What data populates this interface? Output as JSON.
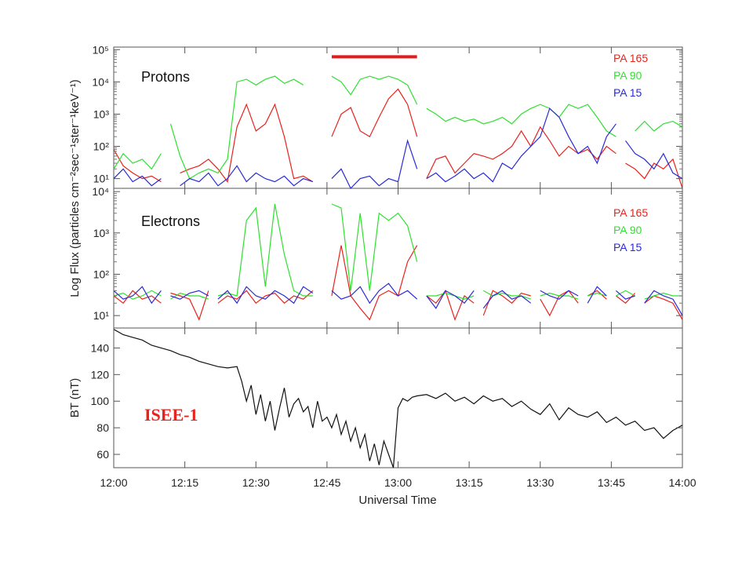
{
  "figure": {
    "ylabel": "Log Flux (particles cm⁻²sec⁻¹ster⁻¹keV⁻¹)",
    "mission_label": "ISEE-1",
    "highlight_bar_color": "#e41a1c"
  },
  "chart_data": [
    {
      "type": "line",
      "panel": "protons",
      "title": "Protons",
      "xlabel": "",
      "ylabel": "Log Flux (particles cm⁻²sec⁻¹ster⁻¹keV⁻¹)",
      "yscale": "log",
      "xlim": [
        0,
        120
      ],
      "ylim": [
        5,
        120000
      ],
      "yticks": [
        10,
        100,
        1000,
        10000,
        100000
      ],
      "ytick_labels": [
        "10¹",
        "10²",
        "10³",
        "10⁴",
        "10⁵"
      ],
      "legend_position": "top-right",
      "highlight_bar": {
        "x_start": 46,
        "x_end": 64,
        "y": 60000
      },
      "series": [
        {
          "name": "PA 165",
          "color": "#e8221c",
          "x": [
            0,
            2,
            4,
            6,
            8,
            10,
            14,
            16,
            18,
            20,
            22,
            24,
            26,
            28,
            30,
            32,
            34,
            36,
            38,
            40,
            42,
            46,
            48,
            50,
            52,
            54,
            56,
            58,
            60,
            62,
            64,
            66,
            68,
            70,
            72,
            74,
            76,
            78,
            80,
            82,
            84,
            86,
            88,
            90,
            92,
            94,
            96,
            98,
            100,
            102,
            104,
            106,
            108,
            110,
            112,
            114,
            116,
            118,
            120
          ],
          "y": [
            80,
            25,
            15,
            10,
            12,
            8,
            15,
            20,
            25,
            40,
            20,
            8,
            400,
            2000,
            300,
            500,
            2000,
            200,
            10,
            12,
            8,
            200,
            1000,
            1600,
            300,
            200,
            800,
            3000,
            6000,
            2000,
            200,
            10,
            40,
            50,
            15,
            30,
            60,
            50,
            40,
            60,
            100,
            300,
            100,
            400,
            150,
            50,
            100,
            60,
            80,
            40,
            100,
            60,
            30,
            20,
            10,
            30,
            20,
            40,
            5
          ],
          "gaps_after_x": [
            10,
            42,
            64,
            106
          ]
        },
        {
          "name": "PA 90",
          "color": "#2fe02f",
          "x": [
            0,
            2,
            4,
            6,
            8,
            10,
            12,
            14,
            16,
            18,
            20,
            22,
            24,
            26,
            28,
            30,
            32,
            34,
            36,
            38,
            40,
            46,
            48,
            50,
            52,
            54,
            56,
            58,
            60,
            62,
            64,
            66,
            68,
            70,
            72,
            74,
            76,
            78,
            80,
            82,
            84,
            86,
            88,
            90,
            92,
            94,
            96,
            98,
            100,
            102,
            104,
            106,
            110,
            112,
            114,
            116,
            118,
            120
          ],
          "y": [
            20,
            60,
            30,
            40,
            20,
            60,
            500,
            50,
            10,
            15,
            20,
            15,
            40,
            10000,
            12000,
            8000,
            12000,
            15000,
            9000,
            12000,
            8000,
            15000,
            10000,
            4000,
            12000,
            15000,
            12000,
            15000,
            12000,
            8000,
            2000,
            1500,
            1000,
            600,
            800,
            600,
            700,
            500,
            600,
            800,
            500,
            1000,
            1500,
            2000,
            1500,
            800,
            2000,
            1500,
            2000,
            800,
            300,
            200,
            300,
            600,
            300,
            500,
            600,
            400
          ],
          "gaps_after_x": [
            10,
            40,
            64,
            106
          ]
        },
        {
          "name": "PA 15",
          "color": "#2a2ad6",
          "x": [
            0,
            2,
            4,
            6,
            8,
            10,
            14,
            16,
            18,
            20,
            22,
            24,
            26,
            28,
            30,
            32,
            34,
            36,
            38,
            40,
            42,
            46,
            48,
            50,
            52,
            54,
            56,
            58,
            60,
            62,
            64,
            66,
            68,
            70,
            72,
            74,
            76,
            78,
            80,
            82,
            84,
            86,
            88,
            90,
            92,
            94,
            96,
            98,
            100,
            102,
            104,
            106,
            108,
            110,
            112,
            114,
            116,
            118,
            120
          ],
          "y": [
            10,
            20,
            8,
            12,
            6,
            10,
            6,
            10,
            8,
            15,
            6,
            10,
            25,
            8,
            15,
            10,
            8,
            12,
            6,
            10,
            8,
            10,
            20,
            5,
            10,
            12,
            6,
            10,
            8,
            150,
            20,
            10,
            15,
            8,
            12,
            20,
            10,
            15,
            8,
            30,
            20,
            50,
            100,
            200,
            1500,
            800,
            200,
            60,
            100,
            30,
            200,
            500,
            150,
            60,
            40,
            20,
            60,
            15,
            10
          ],
          "gaps_after_x": [
            10,
            42,
            64,
            106
          ]
        }
      ]
    },
    {
      "type": "line",
      "panel": "electrons",
      "title": "Electrons",
      "xlabel": "",
      "ylabel": "",
      "yscale": "log",
      "xlim": [
        0,
        120
      ],
      "ylim": [
        5,
        12000
      ],
      "yticks": [
        10,
        100,
        1000,
        10000
      ],
      "ytick_labels": [
        "10¹",
        "10²",
        "10³",
        "10⁴"
      ],
      "legend_position": "top-right",
      "series": [
        {
          "name": "PA 165",
          "color": "#e8221c",
          "x": [
            0,
            2,
            4,
            6,
            8,
            10,
            12,
            14,
            16,
            18,
            20,
            22,
            24,
            26,
            28,
            30,
            32,
            34,
            36,
            38,
            40,
            42,
            46,
            48,
            50,
            52,
            54,
            56,
            58,
            60,
            62,
            64,
            66,
            68,
            70,
            72,
            74,
            76,
            78,
            80,
            82,
            84,
            86,
            88,
            90,
            92,
            94,
            96,
            98,
            100,
            102,
            104,
            106,
            108,
            110,
            112,
            114,
            116,
            118,
            120
          ],
          "y": [
            30,
            20,
            40,
            25,
            30,
            20,
            35,
            30,
            25,
            8,
            40,
            20,
            30,
            25,
            40,
            20,
            30,
            35,
            20,
            30,
            25,
            40,
            30,
            500,
            30,
            15,
            8,
            30,
            40,
            30,
            200,
            500,
            30,
            20,
            40,
            8,
            30,
            20,
            10,
            40,
            30,
            20,
            35,
            30,
            25,
            10,
            30,
            40,
            20,
            30,
            40,
            25,
            30,
            20,
            35,
            20,
            30,
            25,
            20,
            8
          ],
          "gaps_after_x": [
            10,
            20,
            42,
            64,
            76,
            88,
            98,
            104,
            110
          ]
        },
        {
          "name": "PA 90",
          "color": "#2fe02f",
          "x": [
            0,
            2,
            4,
            6,
            8,
            10,
            12,
            14,
            16,
            18,
            20,
            22,
            24,
            26,
            28,
            30,
            32,
            34,
            36,
            38,
            40,
            42,
            46,
            48,
            50,
            52,
            54,
            56,
            58,
            60,
            62,
            64,
            66,
            68,
            70,
            72,
            74,
            76,
            78,
            80,
            82,
            84,
            86,
            88,
            90,
            92,
            94,
            96,
            98,
            100,
            102,
            104,
            106,
            108,
            110,
            112,
            114,
            116,
            118,
            120
          ],
          "y": [
            30,
            35,
            25,
            30,
            40,
            30,
            25,
            35,
            30,
            30,
            25,
            30,
            35,
            30,
            2000,
            4000,
            50,
            5000,
            300,
            40,
            30,
            30,
            5000,
            4000,
            40,
            3000,
            40,
            3000,
            2000,
            3000,
            1500,
            200,
            30,
            30,
            35,
            30,
            25,
            30,
            40,
            30,
            35,
            30,
            30,
            25,
            30,
            35,
            30,
            30,
            25,
            30,
            35,
            30,
            30,
            40,
            30,
            25,
            30,
            35,
            30,
            30
          ],
          "gaps_after_x": [
            10,
            20,
            42,
            64,
            76,
            88,
            98,
            104,
            110
          ]
        },
        {
          "name": "PA 15",
          "color": "#2a2ad6",
          "x": [
            0,
            2,
            4,
            6,
            8,
            10,
            12,
            14,
            16,
            18,
            20,
            22,
            24,
            26,
            28,
            30,
            32,
            34,
            36,
            38,
            40,
            42,
            46,
            48,
            50,
            52,
            54,
            56,
            58,
            60,
            62,
            64,
            66,
            68,
            70,
            72,
            74,
            76,
            78,
            80,
            82,
            84,
            86,
            88,
            90,
            92,
            94,
            96,
            98,
            100,
            102,
            104,
            106,
            108,
            110,
            112,
            114,
            116,
            118,
            120
          ],
          "y": [
            40,
            25,
            30,
            50,
            20,
            40,
            30,
            25,
            35,
            40,
            30,
            25,
            40,
            20,
            50,
            30,
            25,
            40,
            30,
            20,
            50,
            35,
            40,
            25,
            30,
            50,
            20,
            40,
            60,
            30,
            40,
            25,
            30,
            15,
            40,
            30,
            20,
            40,
            15,
            30,
            40,
            25,
            30,
            20,
            40,
            30,
            25,
            40,
            30,
            20,
            50,
            30,
            40,
            25,
            30,
            20,
            40,
            30,
            25,
            10
          ],
          "gaps_after_x": [
            10,
            20,
            42,
            64,
            76,
            88,
            98,
            104,
            110
          ]
        }
      ]
    },
    {
      "type": "line",
      "panel": "field",
      "title": "",
      "xlabel": "Universal Time",
      "ylabel": "BT (nT)",
      "yscale": "linear",
      "xlim": [
        0,
        120
      ],
      "ylim": [
        50,
        155
      ],
      "yticks": [
        60,
        80,
        100,
        120,
        140
      ],
      "ytick_labels": [
        "60",
        "80",
        "100",
        "120",
        "140"
      ],
      "xticks": [
        0,
        15,
        30,
        45,
        60,
        75,
        90,
        105,
        120
      ],
      "xtick_labels": [
        "12:00",
        "12:15",
        "12:30",
        "12:45",
        "13:00",
        "13:15",
        "13:30",
        "13:45",
        "14:00"
      ],
      "series": [
        {
          "name": "",
          "color": "#111111",
          "x": [
            0,
            2,
            4,
            6,
            8,
            10,
            12,
            14,
            16,
            18,
            20,
            22,
            24,
            26,
            27,
            28,
            29,
            30,
            31,
            32,
            33,
            34,
            35,
            36,
            37,
            38,
            39,
            40,
            41,
            42,
            43,
            44,
            45,
            46,
            47,
            48,
            49,
            50,
            51,
            52,
            53,
            54,
            55,
            56,
            57,
            58,
            59,
            60,
            61,
            62,
            63,
            64,
            66,
            68,
            70,
            72,
            74,
            76,
            78,
            80,
            82,
            84,
            86,
            88,
            90,
            92,
            94,
            96,
            98,
            100,
            102,
            104,
            106,
            108,
            110,
            112,
            114,
            116,
            118,
            120
          ],
          "y": [
            154,
            150,
            148,
            146,
            142,
            140,
            138,
            135,
            133,
            130,
            128,
            126,
            125,
            126,
            115,
            100,
            112,
            90,
            105,
            85,
            100,
            78,
            95,
            110,
            88,
            98,
            102,
            92,
            96,
            80,
            100,
            85,
            88,
            80,
            90,
            75,
            85,
            70,
            80,
            65,
            75,
            55,
            68,
            52,
            70,
            60,
            50,
            95,
            102,
            100,
            103,
            104,
            105,
            102,
            106,
            100,
            103,
            98,
            104,
            100,
            102,
            96,
            100,
            94,
            90,
            98,
            86,
            95,
            90,
            88,
            92,
            84,
            88,
            82,
            85,
            78,
            80,
            72,
            78,
            82
          ]
        }
      ]
    }
  ]
}
